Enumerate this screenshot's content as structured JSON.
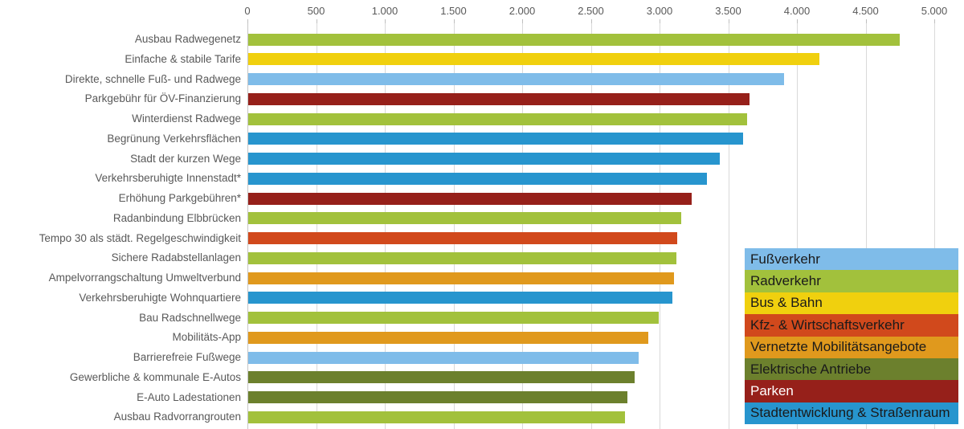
{
  "chart_data": {
    "type": "bar",
    "orientation": "horizontal",
    "title": "",
    "xlabel": "",
    "ylabel": "",
    "xlim": [
      0,
      5000
    ],
    "grid": true,
    "x_ticks": [
      {
        "value": 0,
        "label": "0"
      },
      {
        "value": 500,
        "label": "500"
      },
      {
        "value": 1000,
        "label": "1.000"
      },
      {
        "value": 1500,
        "label": "1.500"
      },
      {
        "value": 2000,
        "label": "2.000"
      },
      {
        "value": 2500,
        "label": "2.500"
      },
      {
        "value": 3000,
        "label": "3.000"
      },
      {
        "value": 3500,
        "label": "3.500"
      },
      {
        "value": 4000,
        "label": "4.000"
      },
      {
        "value": 4500,
        "label": "4.500"
      },
      {
        "value": 5000,
        "label": "5.000"
      }
    ],
    "bars": [
      {
        "label": "Ausbau Radwegenetz",
        "value": 4740,
        "group": "Radverkehr"
      },
      {
        "label": "Einfache & stabile Tarife",
        "value": 4160,
        "group": "Bus & Bahn"
      },
      {
        "label": "Direkte, schnelle Fuß- und Radwege",
        "value": 3900,
        "group": "Fußverkehr"
      },
      {
        "label": "Parkgebühr für ÖV-Finanzierung",
        "value": 3650,
        "group": "Parken"
      },
      {
        "label": "Winterdienst Radwege",
        "value": 3630,
        "group": "Radverkehr"
      },
      {
        "label": "Begrünung Verkehrsflächen",
        "value": 3600,
        "group": "Stadtentwicklung & Straßenraum"
      },
      {
        "label": "Stadt der kurzen Wege",
        "value": 3430,
        "group": "Stadtentwicklung & Straßenraum"
      },
      {
        "label": "Verkehrsberuhigte Innenstadt*",
        "value": 3340,
        "group": "Stadtentwicklung & Straßenraum"
      },
      {
        "label": "Erhöhung Parkgebühren*",
        "value": 3230,
        "group": "Parken"
      },
      {
        "label": "Radanbindung Elbbrücken",
        "value": 3150,
        "group": "Radverkehr"
      },
      {
        "label": "Tempo 30 als städt. Regelgeschwindigkeit",
        "value": 3125,
        "group": "Kfz- & Wirtschaftsverkehr"
      },
      {
        "label": "Sichere Radabstellanlagen",
        "value": 3115,
        "group": "Radverkehr"
      },
      {
        "label": "Ampelvorrangschaltung Umweltverbund",
        "value": 3100,
        "group": "Vernetzte Mobilitätsangebote"
      },
      {
        "label": "Verkehrsberuhigte Wohnquartiere",
        "value": 3090,
        "group": "Stadtentwicklung & Straßenraum"
      },
      {
        "label": "Bau Radschnellwege",
        "value": 2990,
        "group": "Radverkehr"
      },
      {
        "label": "Mobilitäts-App",
        "value": 2910,
        "group": "Vernetzte Mobilitätsangebote"
      },
      {
        "label": "Barrierefreie Fußwege",
        "value": 2840,
        "group": "Fußverkehr"
      },
      {
        "label": "Gewerbliche & kommunale E-Autos",
        "value": 2810,
        "group": "Elektrische Antriebe"
      },
      {
        "label": "E-Auto Ladestationen",
        "value": 2760,
        "group": "Elektrische Antriebe"
      },
      {
        "label": "Ausbau Radvorrangrouten",
        "value": 2740,
        "group": "Radverkehr"
      }
    ],
    "colors": {
      "Fußverkehr": "#7FBCE9",
      "Radverkehr": "#A2C13C",
      "Bus & Bahn": "#F0D00E",
      "Kfz- & Wirtschaftsverkehr": "#D1491C",
      "Vernetzte Mobilitätsangebote": "#E0991D",
      "Elektrische Antriebe": "#6C802D",
      "Parken": "#96201A",
      "Stadtentwicklung & Straßenraum": "#2795CE"
    },
    "legend": {
      "position": "bottom-right",
      "entries": [
        {
          "label": "Fußverkehr",
          "color": "#7FBCE9",
          "text_color": "#1A1A1A"
        },
        {
          "label": "Radverkehr",
          "color": "#A2C13C",
          "text_color": "#1A1A1A"
        },
        {
          "label": "Bus & Bahn",
          "color": "#F0D00E",
          "text_color": "#1A1A1A"
        },
        {
          "label": "Kfz- & Wirtschaftsverkehr",
          "color": "#D1491C",
          "text_color": "#1A1A1A"
        },
        {
          "label": "Vernetzte Mobilitätsangebote",
          "color": "#E0991D",
          "text_color": "#1A1A1A"
        },
        {
          "label": "Elektrische Antriebe",
          "color": "#6C802D",
          "text_color": "#1A1A1A"
        },
        {
          "label": "Parken",
          "color": "#96201A",
          "text_color": "#FFFFFF"
        },
        {
          "label": "Stadtentwicklung & Straßenraum",
          "color": "#2795CE",
          "text_color": "#1A1A1A"
        }
      ]
    },
    "axis_text_color": "#595959",
    "gridline_color": "#D9D9D9"
  }
}
